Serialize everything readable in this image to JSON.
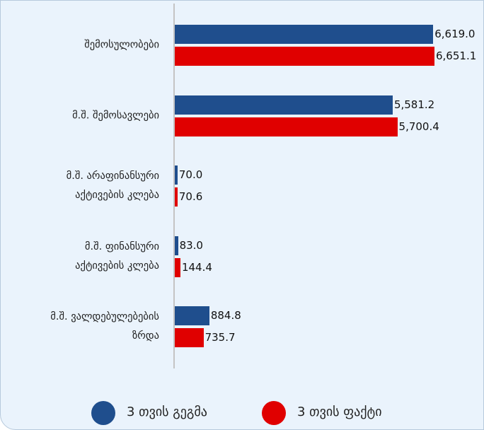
{
  "chart_data": {
    "type": "bar",
    "orientation": "horizontal",
    "categories": [
      "შემოსულობები",
      "მ.შ. შემოსავლები",
      "მ.შ. არაფინანსური\nაქტივების კლება",
      "მ.შ. ფინანსური\nაქტივების კლება",
      "მ.შ. ვალდებულებების\nზრდა"
    ],
    "series": [
      {
        "name": "3 თვის გეგმა",
        "color": "#1f4e8d",
        "values": [
          6619.0,
          5581.2,
          70.0,
          83.0,
          884.8
        ],
        "value_labels": [
          "6,619.0",
          "5,581.2",
          "70.0",
          "83.0",
          "884.8"
        ]
      },
      {
        "name": "3 თვის ფაქტი",
        "color": "#e00000",
        "values": [
          6651.1,
          5700.4,
          70.6,
          144.4,
          735.7
        ],
        "value_labels": [
          "6,651.1",
          "5,700.4",
          "70.6",
          "144.4",
          "735.7"
        ]
      }
    ],
    "legend": "bottom"
  }
}
